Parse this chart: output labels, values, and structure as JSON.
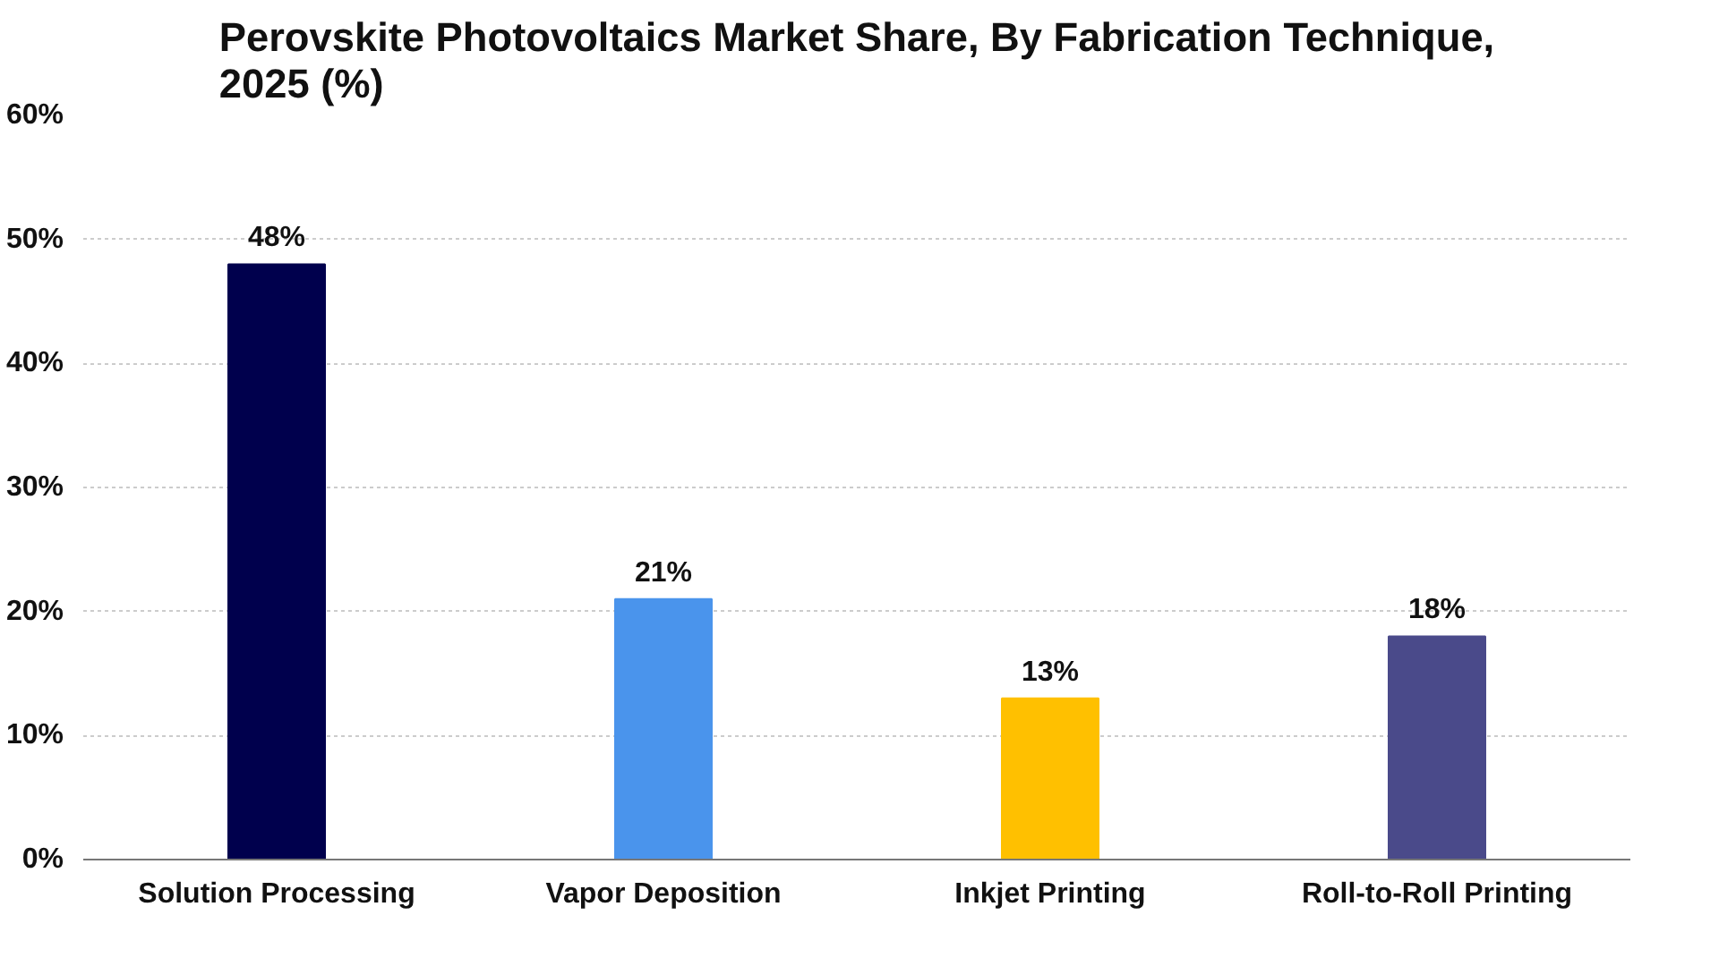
{
  "chart_data": {
    "type": "bar",
    "title": "Perovskite Photovoltaics Market Share, By Fabrication Technique, 2025 (%)",
    "categories": [
      "Solution Processing",
      "Vapor Deposition",
      "Inkjet Printing",
      "Roll-to-Roll Printing"
    ],
    "values": [
      48,
      21,
      13,
      18
    ],
    "colors": [
      "#00004d",
      "#4a94ec",
      "#ffc000",
      "#4a4a8a"
    ],
    "value_labels": [
      "48%",
      "21%",
      "13%",
      "18%"
    ],
    "ylim": [
      0,
      60
    ],
    "yticks": [
      {
        "value": 0,
        "label": "0%"
      },
      {
        "value": 10,
        "label": "10%"
      },
      {
        "value": 20,
        "label": "20%"
      },
      {
        "value": 30,
        "label": "30%"
      },
      {
        "value": 40,
        "label": "40%"
      },
      {
        "value": 50,
        "label": "50%"
      },
      {
        "value": 60,
        "label": "60%"
      }
    ],
    "grid": "y"
  }
}
